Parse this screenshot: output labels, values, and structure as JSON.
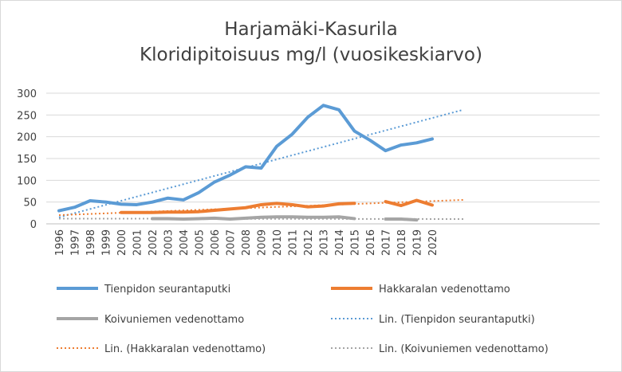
{
  "chart_data": {
    "type": "line",
    "title": "Harjamäki-Kasurila",
    "subtitle": "Kloridipitoisuus mg/l (vuosikeskiarvo)",
    "categories": [
      "1996",
      "1997",
      "1998",
      "1999",
      "2000",
      "2001",
      "2002",
      "2003",
      "2004",
      "2005",
      "2006",
      "2007",
      "2008",
      "2009",
      "2010",
      "2011",
      "2012",
      "2013",
      "2014",
      "2015",
      "2016",
      "2017",
      "2018",
      "2019",
      "2020"
    ],
    "ylim": [
      0,
      300
    ],
    "yticks": [
      "0",
      "50",
      "100",
      "150",
      "200",
      "250",
      "300"
    ],
    "grid": true,
    "legend_position": "bottom",
    "series": [
      {
        "name": "Tienpidon seurantaputki",
        "color": "#5b9bd5",
        "style": "solid",
        "values": [
          30,
          38,
          53,
          50,
          45,
          44,
          50,
          59,
          55,
          72,
          96,
          112,
          131,
          128,
          178,
          206,
          245,
          272,
          262,
          213,
          192,
          168,
          181,
          186,
          195
        ]
      },
      {
        "name": "Hakkaralan vedenottamo",
        "color": "#ed7d31",
        "style": "solid",
        "values": [
          null,
          null,
          null,
          null,
          26,
          26,
          26,
          27,
          27,
          28,
          31,
          34,
          37,
          44,
          47,
          44,
          39,
          41,
          46,
          47,
          null,
          51,
          42,
          54,
          43
        ]
      },
      {
        "name": "Koivuniemen vedenottamo",
        "color": "#a5a5a5",
        "style": "solid",
        "values": [
          null,
          null,
          null,
          null,
          null,
          null,
          12,
          12,
          11,
          12,
          13,
          11,
          13,
          15,
          16,
          16,
          15,
          15,
          16,
          12,
          null,
          11,
          11,
          9,
          null
        ]
      }
    ],
    "trendlines": [
      {
        "name": "Lin. (Tienpidon seurantaputki)",
        "color": "#5b9bd5",
        "style": "dotted",
        "from": [
          1996,
          15
        ],
        "to": [
          2022,
          262
        ]
      },
      {
        "name": "Lin. (Hakkaralan vedenottamo)",
        "color": "#ed7d31",
        "style": "dotted",
        "from": [
          1996,
          20
        ],
        "to": [
          2022,
          55
        ]
      },
      {
        "name": "Lin. (Koivuniemen vedenottamo)",
        "color": "#a5a5a5",
        "style": "dotted",
        "from": [
          1996,
          12
        ],
        "to": [
          2022,
          11
        ]
      }
    ],
    "legend": [
      {
        "label": "Tienpidon seurantaputki",
        "color": "#5b9bd5",
        "style": "solid"
      },
      {
        "label": "Hakkaralan vedenottamo",
        "color": "#ed7d31",
        "style": "solid"
      },
      {
        "label": "Koivuniemen vedenottamo",
        "color": "#a5a5a5",
        "style": "solid"
      },
      {
        "label": "Lin. (Tienpidon seurantaputki)",
        "color": "#5b9bd5",
        "style": "dotted"
      },
      {
        "label": "Lin. (Hakkaralan vedenottamo)",
        "color": "#ed7d31",
        "style": "dotted"
      },
      {
        "label": "Lin. (Koivuniemen vedenottamo)",
        "color": "#a5a5a5",
        "style": "dotted"
      }
    ]
  }
}
